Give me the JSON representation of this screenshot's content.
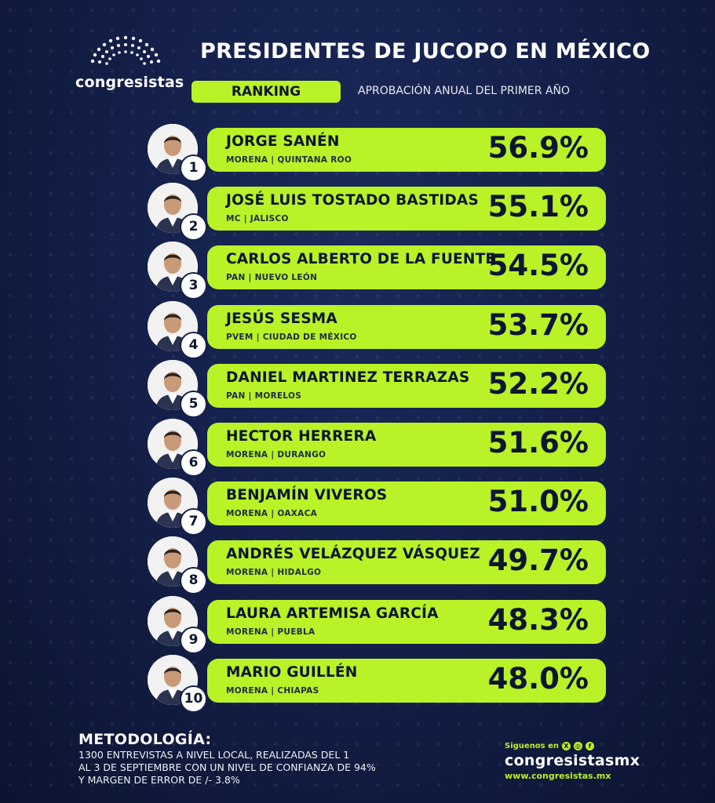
{
  "brand": {
    "name": "congresistas"
  },
  "header": {
    "title": "PRESIDENTES DE JUCOPO EN MÉXICO",
    "ranking_label": "RANKING",
    "subtitle": "APROBACIÓN ANUAL DEL PRIMER AÑO"
  },
  "colors": {
    "accent": "#b8f227",
    "background": "#14204a",
    "text_dark": "#0d1530"
  },
  "ranking": [
    {
      "rank": "1",
      "name": "JORGE SANÉN",
      "party": "MORENA | QUINTANA ROO",
      "pct": "56.9%",
      "value": 56.9,
      "photo": "person-photo"
    },
    {
      "rank": "2",
      "name": "JOSÉ LUIS TOSTADO BASTIDAS",
      "party": "MC | JALISCO",
      "pct": "55.1%",
      "value": 55.1,
      "photo": "person-photo"
    },
    {
      "rank": "3",
      "name": "CARLOS ALBERTO DE LA FUENTE",
      "party": "PAN | NUEVO LEÓN",
      "pct": "54.5%",
      "value": 54.5,
      "photo": "person-photo"
    },
    {
      "rank": "4",
      "name": "JESÚS SESMA",
      "party": "PVEM | CIUDAD DE MÉXICO",
      "pct": "53.7%",
      "value": 53.7,
      "photo": "person-photo"
    },
    {
      "rank": "5",
      "name": "DANIEL MARTINEZ TERRAZAS",
      "party": "PAN | MORELOS",
      "pct": "52.2%",
      "value": 52.2,
      "photo": "person-photo"
    },
    {
      "rank": "6",
      "name": "HECTOR HERRERA",
      "party": "MORENA | DURANGO",
      "pct": "51.6%",
      "value": 51.6,
      "photo": "person-photo"
    },
    {
      "rank": "7",
      "name": "BENJAMÍN VIVEROS",
      "party": "MORENA | OAXACA",
      "pct": "51.0%",
      "value": 51.0,
      "photo": "person-photo"
    },
    {
      "rank": "8",
      "name": "ANDRÉS VELÁZQUEZ VÁSQUEZ",
      "party": "MORENA | HIDALGO",
      "pct": "49.7%",
      "value": 49.7,
      "photo": "person-photo"
    },
    {
      "rank": "9",
      "name": "LAURA ARTEMISA GARCÍA",
      "party": "MORENA | PUEBLA",
      "pct": "48.3%",
      "value": 48.3,
      "photo": "person-photo"
    },
    {
      "rank": "10",
      "name": "MARIO GUILLÉN",
      "party": "MORENA | CHIAPAS",
      "pct": "48.0%",
      "value": 48.0,
      "photo": "person-photo"
    }
  ],
  "footer": {
    "method_title": "METODOLOGÍA:",
    "method_lines": [
      "1300 ENTREVISTAS A NIVEL LOCAL, REALIZADAS DEL 1",
      "AL 3 DE SEPTIEMBRE CON UN NIVEL DE CONFIANZA DE 94%",
      "Y MARGEN DE ERROR DE /- 3.8%"
    ],
    "follow_label": "Siguenos en",
    "social_icons": [
      "x-icon",
      "instagram-icon",
      "facebook-icon"
    ],
    "social_glyphs": [
      "X",
      "◎",
      "f"
    ],
    "handle": "congresistasmx",
    "website": "www.congresistas.mx"
  }
}
